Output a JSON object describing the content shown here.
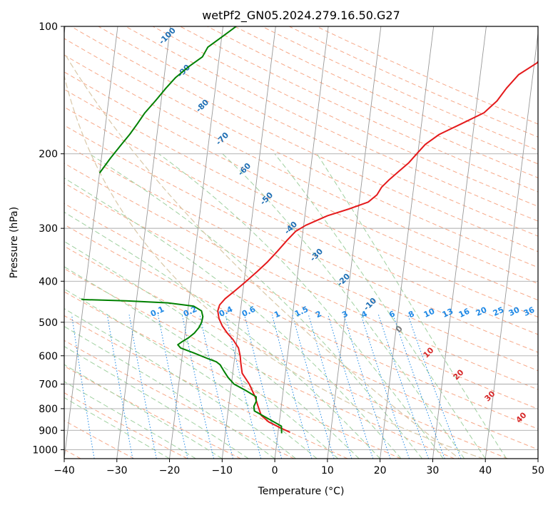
{
  "chart_data": {
    "type": "line",
    "title": "wetPf2_GN05.2024.279.16.50.G27",
    "xlabel": "Temperature (°C)",
    "ylabel": "Pressure (hPa)",
    "xlim": [
      -40,
      50
    ],
    "ylim": [
      1050,
      100
    ],
    "y_scale": "log",
    "x_ticks": [
      -40,
      -30,
      -20,
      -10,
      0,
      10,
      20,
      30,
      40,
      50
    ],
    "y_ticks": [
      100,
      200,
      300,
      400,
      500,
      600,
      700,
      800,
      900,
      1000
    ],
    "grid": true,
    "series": [
      {
        "color": "#e41a1c",
        "points": [
          [
            2.3,
            910
          ],
          [
            0.5,
            890
          ],
          [
            -2.0,
            860
          ],
          [
            -3.6,
            830
          ],
          [
            -4.4,
            790
          ],
          [
            -5.2,
            750
          ],
          [
            -6.6,
            700
          ],
          [
            -8.2,
            660
          ],
          [
            -8.7,
            625
          ],
          [
            -9.0,
            600
          ],
          [
            -9.5,
            575
          ],
          [
            -10.7,
            550
          ],
          [
            -12.0,
            530
          ],
          [
            -13.1,
            510
          ],
          [
            -13.9,
            490
          ],
          [
            -14.3,
            470
          ],
          [
            -14.1,
            455
          ],
          [
            -13.2,
            440
          ],
          [
            -11.4,
            420
          ],
          [
            -9.6,
            400
          ],
          [
            -7.8,
            380
          ],
          [
            -6.0,
            360
          ],
          [
            -4.4,
            340
          ],
          [
            -2.8,
            320
          ],
          [
            -1.4,
            305
          ],
          [
            0.4,
            295
          ],
          [
            4.3,
            280
          ],
          [
            8.2,
            270
          ],
          [
            11.7,
            260
          ],
          [
            13.2,
            250
          ],
          [
            13.9,
            240
          ],
          [
            15.2,
            230
          ],
          [
            16.8,
            220
          ],
          [
            18.5,
            210
          ],
          [
            19.8,
            200
          ],
          [
            21.2,
            190
          ],
          [
            23.6,
            180
          ],
          [
            27.5,
            170
          ],
          [
            31.6,
            160
          ],
          [
            33.8,
            150
          ],
          [
            35.3,
            140
          ],
          [
            37.3,
            130
          ],
          [
            40.5,
            122
          ],
          [
            41.8,
            115
          ],
          [
            43.0,
            110
          ],
          [
            44.3,
            105
          ],
          [
            45.7,
            100
          ]
        ]
      },
      {
        "color": "#008000",
        "points": [
          [
            0.7,
            915
          ],
          [
            0.5,
            880
          ],
          [
            -1.8,
            850
          ],
          [
            -3.8,
            825
          ],
          [
            -5.0,
            810
          ],
          [
            -5.2,
            790
          ],
          [
            -4.9,
            770
          ],
          [
            -5.0,
            750
          ],
          [
            -7.1,
            725
          ],
          [
            -9.5,
            700
          ],
          [
            -10.8,
            675
          ],
          [
            -11.8,
            650
          ],
          [
            -12.2,
            640
          ],
          [
            -12.6,
            630
          ],
          [
            -13.4,
            620
          ],
          [
            -15.0,
            610
          ],
          [
            -18.0,
            590
          ],
          [
            -20.5,
            575
          ],
          [
            -21.1,
            565
          ],
          [
            -20.3,
            555
          ],
          [
            -19.3,
            545
          ],
          [
            -18.2,
            530
          ],
          [
            -17.5,
            515
          ],
          [
            -17.1,
            500
          ],
          [
            -17.0,
            485
          ],
          [
            -17.4,
            470
          ],
          [
            -19.0,
            458
          ],
          [
            -24.0,
            450
          ],
          [
            -32.0,
            445
          ],
          [
            -40.0,
            442
          ],
          [
            -40.5,
            441
          ]
        ]
      },
      {
        "color": "#008000",
        "points": [
          [
            -40.0,
            222
          ],
          [
            -38.3,
            205
          ],
          [
            -36.5,
            190
          ],
          [
            -35.2,
            180
          ],
          [
            -34.0,
            170
          ],
          [
            -32.8,
            160
          ],
          [
            -31.1,
            150
          ],
          [
            -29.4,
            140
          ],
          [
            -27.8,
            132
          ],
          [
            -25.4,
            124
          ],
          [
            -23.2,
            118
          ],
          [
            -22.4,
            112
          ],
          [
            -19.6,
            105
          ],
          [
            -17.5,
            100
          ]
        ]
      }
    ],
    "dry_adiabat_labels": [
      "-100",
      "-90",
      "-80",
      "-70",
      "-60",
      "-50",
      "-40",
      "-30",
      "-20",
      "-10"
    ],
    "moist_adiabat_labels": [
      "0",
      "10",
      "20",
      "30",
      "40"
    ],
    "mixing_ratio_labels": [
      "0.1",
      "0.2",
      "0.4",
      "0.6",
      "1",
      "1.5",
      "2",
      "3",
      "4",
      "6",
      "8",
      "10",
      "13",
      "16",
      "20",
      "25",
      "30",
      "36"
    ],
    "colors": {
      "isotherm": "#999999",
      "isobar": "#aaaaaa",
      "dry_adiabat": "#f7a888",
      "moist_adiabat": "#9fd09f",
      "mixing_ratio": "#1e88e5",
      "dry_label": "#1f6fb4",
      "moist_label_warm": "#d62728",
      "moist_label_zero": "#777777",
      "arc": "#d9c8a8"
    }
  }
}
